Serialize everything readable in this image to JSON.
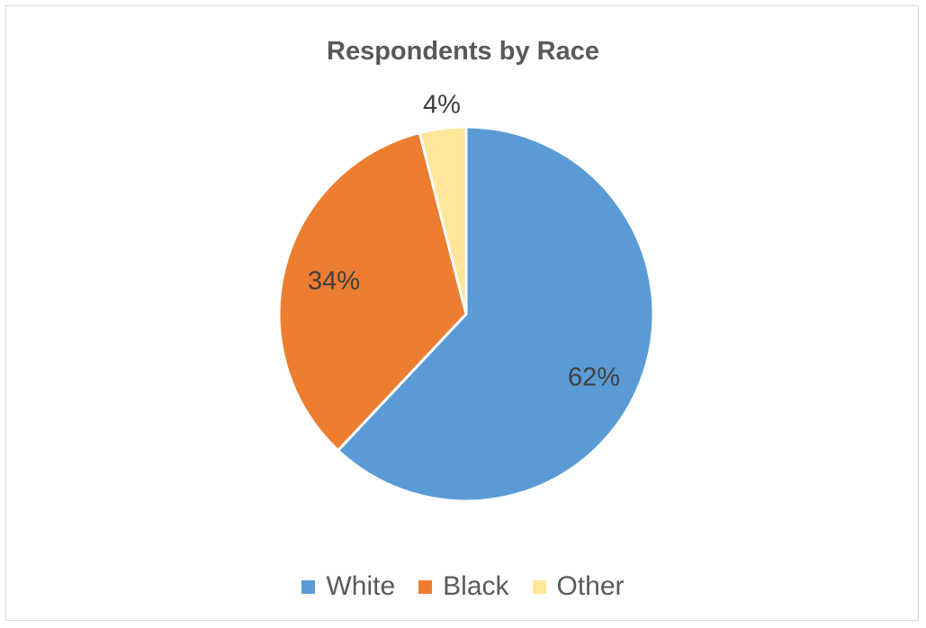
{
  "chart_data": {
    "type": "pie",
    "title": "Respondents by Race",
    "categories": [
      "White",
      "Black",
      "Other"
    ],
    "values": [
      62,
      34,
      4
    ],
    "value_labels": [
      "62%",
      "34%",
      "4%"
    ],
    "colors": [
      "#5B9BD5",
      "#ED7D31",
      "#FFE699"
    ],
    "legend_position": "bottom"
  }
}
